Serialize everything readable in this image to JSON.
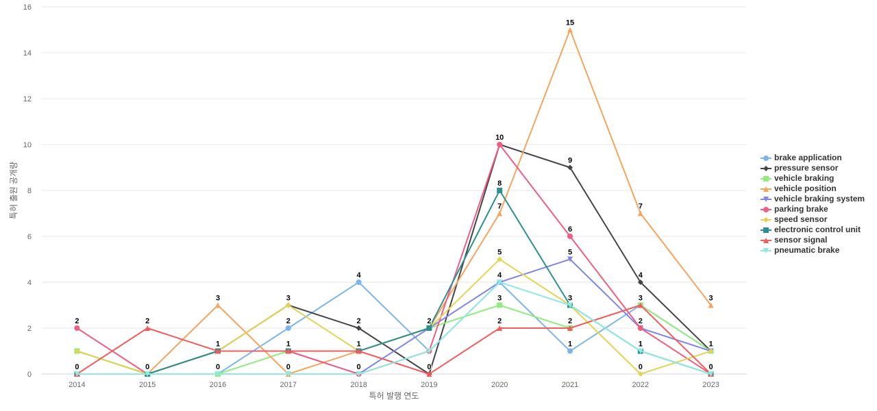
{
  "chart_data": {
    "type": "line",
    "title": "",
    "xlabel": "특허 발행 연도",
    "ylabel": "특허 출원 공개량",
    "ylim": [
      0,
      16
    ],
    "yticks": [
      0,
      2,
      4,
      6,
      8,
      10,
      12,
      14,
      16
    ],
    "grid": true,
    "legend_position": "right",
    "categories": [
      "2014",
      "2015",
      "2016",
      "2017",
      "2018",
      "2019",
      "2020",
      "2021",
      "2022",
      "2023"
    ],
    "series": [
      {
        "name": "brake application",
        "color": "#7cb5ec",
        "marker": "circle",
        "values": [
          0,
          0,
          0,
          2,
          4,
          1,
          4,
          1,
          3,
          1
        ],
        "labels": [
          false,
          false,
          false,
          true,
          true,
          false,
          false,
          true,
          false,
          false
        ]
      },
      {
        "name": "pressure sensor",
        "color": "#434348",
        "marker": "diamond",
        "values": [
          1,
          0,
          1,
          3,
          2,
          0,
          10,
          9,
          4,
          1
        ],
        "labels": [
          false,
          false,
          false,
          false,
          true,
          false,
          false,
          true,
          true,
          false
        ]
      },
      {
        "name": "vehicle braking",
        "color": "#90ed7d",
        "marker": "square",
        "values": [
          1,
          0,
          0,
          1,
          1,
          2,
          3,
          2,
          3,
          1
        ],
        "labels": [
          false,
          false,
          false,
          false,
          false,
          false,
          true,
          false,
          false,
          false
        ]
      },
      {
        "name": "vehicle position",
        "color": "#f7a35c",
        "marker": "triangle",
        "values": [
          0,
          0,
          3,
          0,
          1,
          2,
          7,
          15,
          7,
          3
        ],
        "labels": [
          false,
          false,
          true,
          false,
          false,
          false,
          true,
          true,
          true,
          true
        ]
      },
      {
        "name": "vehicle braking system",
        "color": "#8085e9",
        "marker": "triangle-down",
        "values": [
          0,
          0,
          1,
          1,
          0,
          2,
          4,
          5,
          2,
          1
        ],
        "labels": [
          false,
          false,
          false,
          false,
          false,
          false,
          true,
          true,
          false,
          false
        ]
      },
      {
        "name": "parking brake",
        "color": "#f15c80",
        "marker": "circle",
        "values": [
          2,
          0,
          1,
          1,
          0,
          1,
          10,
          6,
          2,
          0
        ],
        "labels": [
          true,
          false,
          false,
          false,
          false,
          false,
          true,
          true,
          true,
          false
        ]
      },
      {
        "name": "speed sensor",
        "color": "#e4d354",
        "marker": "diamond",
        "values": [
          1,
          0,
          1,
          3,
          1,
          2,
          5,
          3,
          0,
          1
        ],
        "labels": [
          false,
          false,
          false,
          true,
          false,
          false,
          true,
          false,
          true,
          true
        ]
      },
      {
        "name": "electronic control unit",
        "color": "#2b908f",
        "marker": "square",
        "values": [
          0,
          0,
          1,
          1,
          1,
          2,
          8,
          3,
          1,
          0
        ],
        "labels": [
          false,
          false,
          true,
          true,
          true,
          true,
          true,
          true,
          true,
          false
        ]
      },
      {
        "name": "sensor signal",
        "color": "#f45b5b",
        "marker": "triangle",
        "values": [
          0,
          2,
          1,
          1,
          1,
          0,
          2,
          2,
          3,
          0
        ],
        "labels": [
          true,
          true,
          false,
          false,
          false,
          true,
          true,
          true,
          true,
          true
        ]
      },
      {
        "name": "pneumatic brake",
        "color": "#91e8e1",
        "marker": "triangle-down",
        "values": [
          0,
          0,
          0,
          0,
          0,
          1,
          4,
          3,
          1,
          0
        ],
        "labels": [
          false,
          true,
          true,
          true,
          true,
          false,
          false,
          false,
          false,
          false
        ]
      }
    ]
  }
}
